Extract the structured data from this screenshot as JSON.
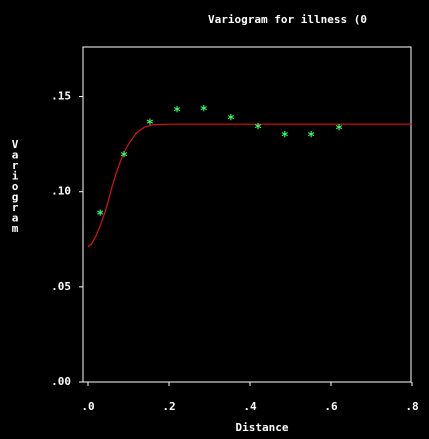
{
  "chart_data": {
    "type": "scatter",
    "title": "Variogram for illness (0",
    "x_label": "Distance",
    "y_label": "Variogram",
    "xlim": [
      0,
      0.8
    ],
    "ylim": [
      0,
      0.175
    ],
    "xticks": [
      {
        "value": 0,
        "label": ".0"
      },
      {
        "value": 0.2,
        "label": ".2"
      },
      {
        "value": 0.4,
        "label": ".4"
      },
      {
        "value": 0.6,
        "label": ".6"
      },
      {
        "value": 0.8,
        "label": ".8"
      }
    ],
    "yticks": [
      {
        "value": 0,
        "label": ".00"
      },
      {
        "value": 0.05,
        "label": ".05"
      },
      {
        "value": 0.1,
        "label": ".10"
      },
      {
        "value": 0.15,
        "label": ".15"
      }
    ],
    "points": {
      "color": "#33ff66",
      "marker": "*",
      "x": [
        0.03,
        0.089,
        0.153,
        0.22,
        0.286,
        0.353,
        0.42,
        0.486,
        0.551,
        0.62
      ],
      "values": [
        0.0884,
        0.119,
        0.136,
        0.1426,
        0.1432,
        0.1384,
        0.1337,
        0.1295,
        0.1295,
        0.1332
      ]
    },
    "curve": {
      "color": "#dd1111",
      "x": [
        0,
        0.01,
        0.02,
        0.03,
        0.04,
        0.05,
        0.06,
        0.07,
        0.08,
        0.09,
        0.1,
        0.12,
        0.14,
        0.16,
        0.2,
        0.3,
        0.5,
        0.8
      ],
      "values": [
        0.071,
        0.073,
        0.077,
        0.082,
        0.088,
        0.095,
        0.103,
        0.11,
        0.116,
        0.121,
        0.125,
        0.131,
        0.134,
        0.1352,
        0.1355,
        0.1355,
        0.1355,
        0.1355
      ]
    }
  }
}
